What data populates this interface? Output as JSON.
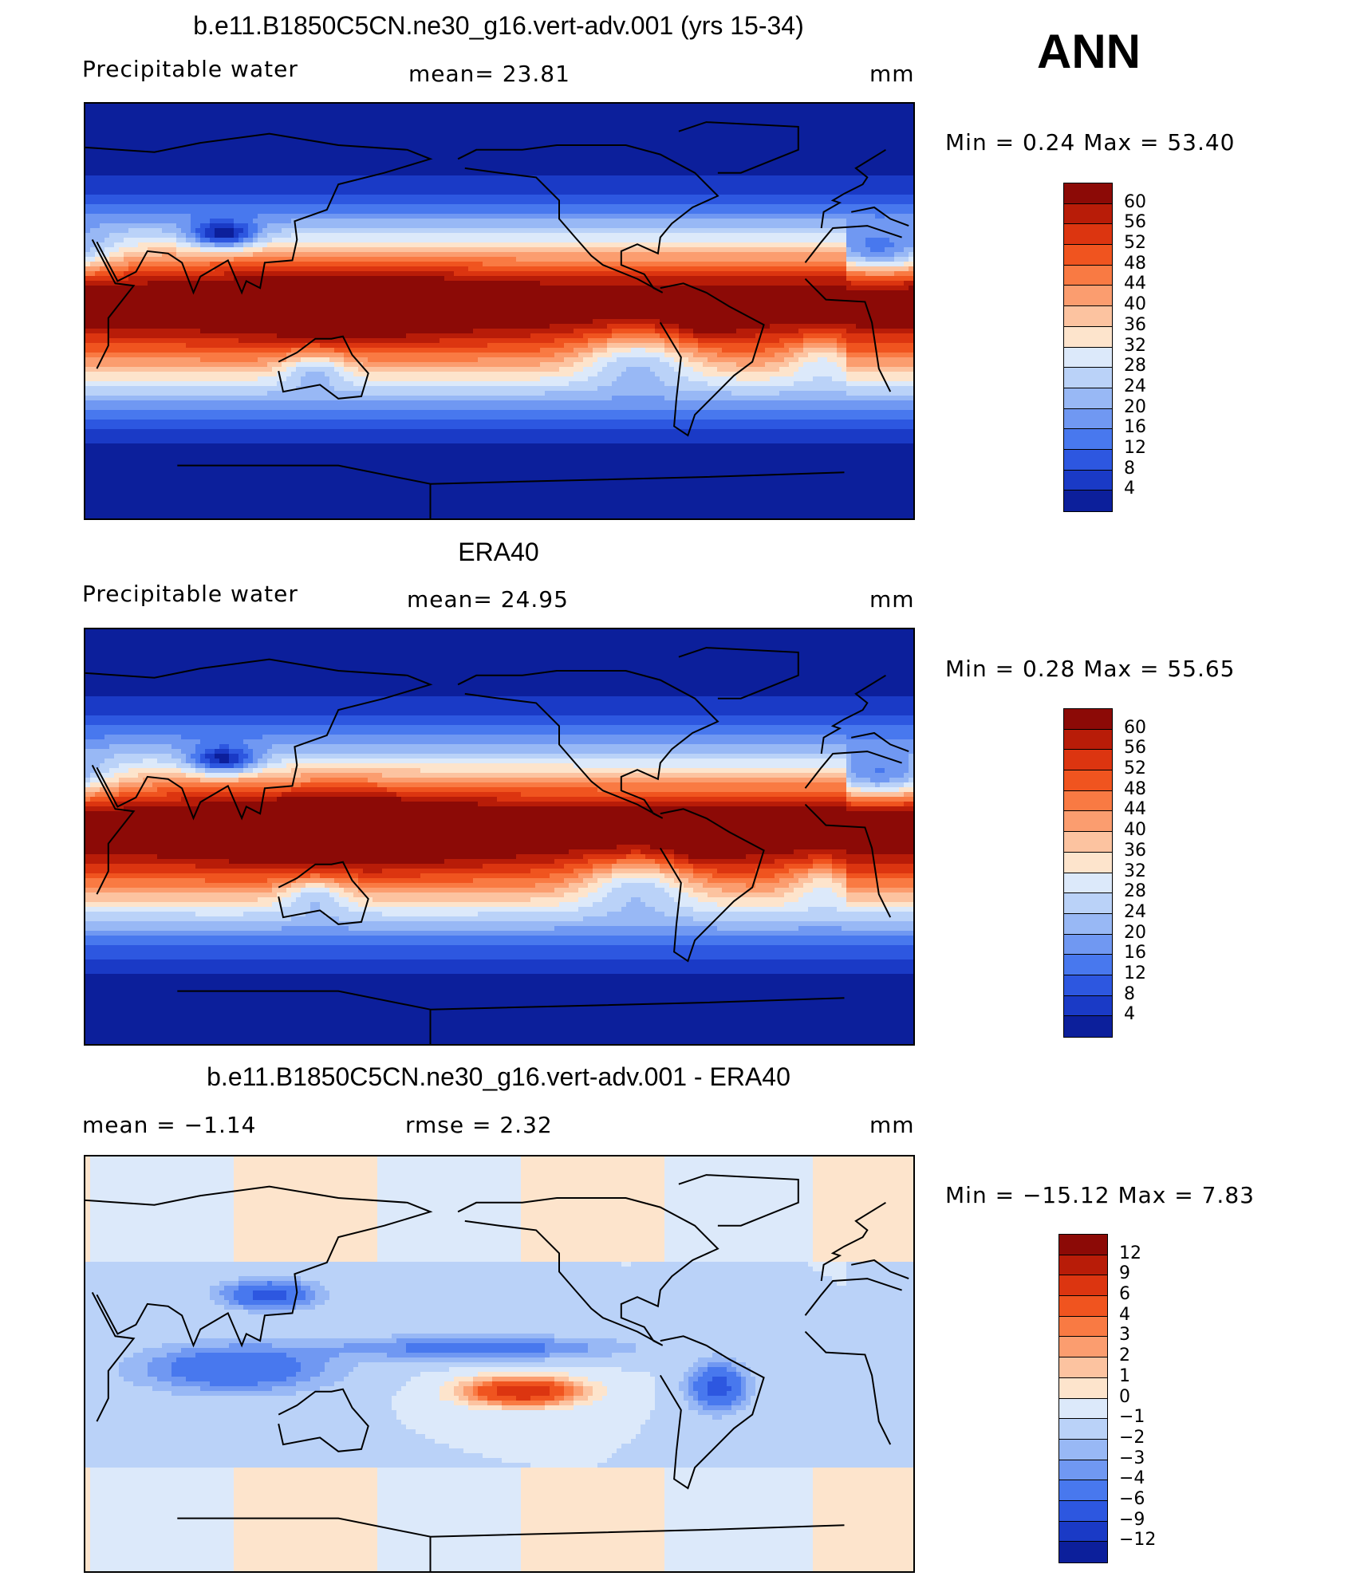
{
  "season": "ANN",
  "panels": [
    {
      "title": "b.e11.B1850C5CN.ne30_g16.vert-adv.001 (yrs 15-34)",
      "left_label": "Precipitable  water",
      "mid_label": "mean=   23.81",
      "units": "mm",
      "minmax": "Min  =     0.24  Max  =    53.40",
      "type": "field",
      "colorbar": {
        "labels": [
          "60",
          "56",
          "52",
          "48",
          "44",
          "40",
          "36",
          "32",
          "28",
          "24",
          "20",
          "16",
          "12",
          "8",
          "4"
        ],
        "colors": [
          "#8c0a06",
          "#b81c08",
          "#dc3510",
          "#f0541f",
          "#f97a43",
          "#fb9d6f",
          "#fcc3a0",
          "#fde4cc",
          "#dce9fa",
          "#bad2f8",
          "#98b8f5",
          "#7098f2",
          "#4878ee",
          "#2d57e0",
          "#1a3ac6",
          "#0c1f9b"
        ]
      },
      "shading": "the model",
      "data_kind": "model"
    },
    {
      "title": "ERA40",
      "left_label": "Precipitable  water",
      "mid_label": "mean=   24.95",
      "units": "mm",
      "minmax": "Min  =     0.28  Max  =    55.65",
      "type": "field",
      "colorbar": {
        "labels": [
          "60",
          "56",
          "52",
          "48",
          "44",
          "40",
          "36",
          "32",
          "28",
          "24",
          "20",
          "16",
          "12",
          "8",
          "4"
        ],
        "colors": [
          "#8c0a06",
          "#b81c08",
          "#dc3510",
          "#f0541f",
          "#f97a43",
          "#fb9d6f",
          "#fcc3a0",
          "#fde4cc",
          "#dce9fa",
          "#bad2f8",
          "#98b8f5",
          "#7098f2",
          "#4878ee",
          "#2d57e0",
          "#1a3ac6",
          "#0c1f9b"
        ]
      },
      "data_kind": "obs"
    },
    {
      "title": "b.e11.B1850C5CN.ne30_g16.vert-adv.001 - ERA40",
      "left_label": "mean  =   −1.14",
      "mid_label": "rmse  =     2.32",
      "units": "mm",
      "minmax": "Min  =  −15.12  Max  =     7.83",
      "type": "diff",
      "colorbar": {
        "labels": [
          "12",
          "9",
          "6",
          "4",
          "3",
          "2",
          "1",
          "0",
          "−1",
          "−2",
          "−3",
          "−4",
          "−6",
          "−9",
          "−12"
        ],
        "colors": [
          "#8c0a06",
          "#b81c08",
          "#dc3510",
          "#f0541f",
          "#f97a43",
          "#fb9d6f",
          "#fcc3a0",
          "#fde4cc",
          "#dce9fa",
          "#bad2f8",
          "#98b8f5",
          "#7098f2",
          "#4878ee",
          "#2d57e0",
          "#1a3ac6",
          "#0c1f9b"
        ]
      },
      "data_kind": "diff"
    }
  ]
}
